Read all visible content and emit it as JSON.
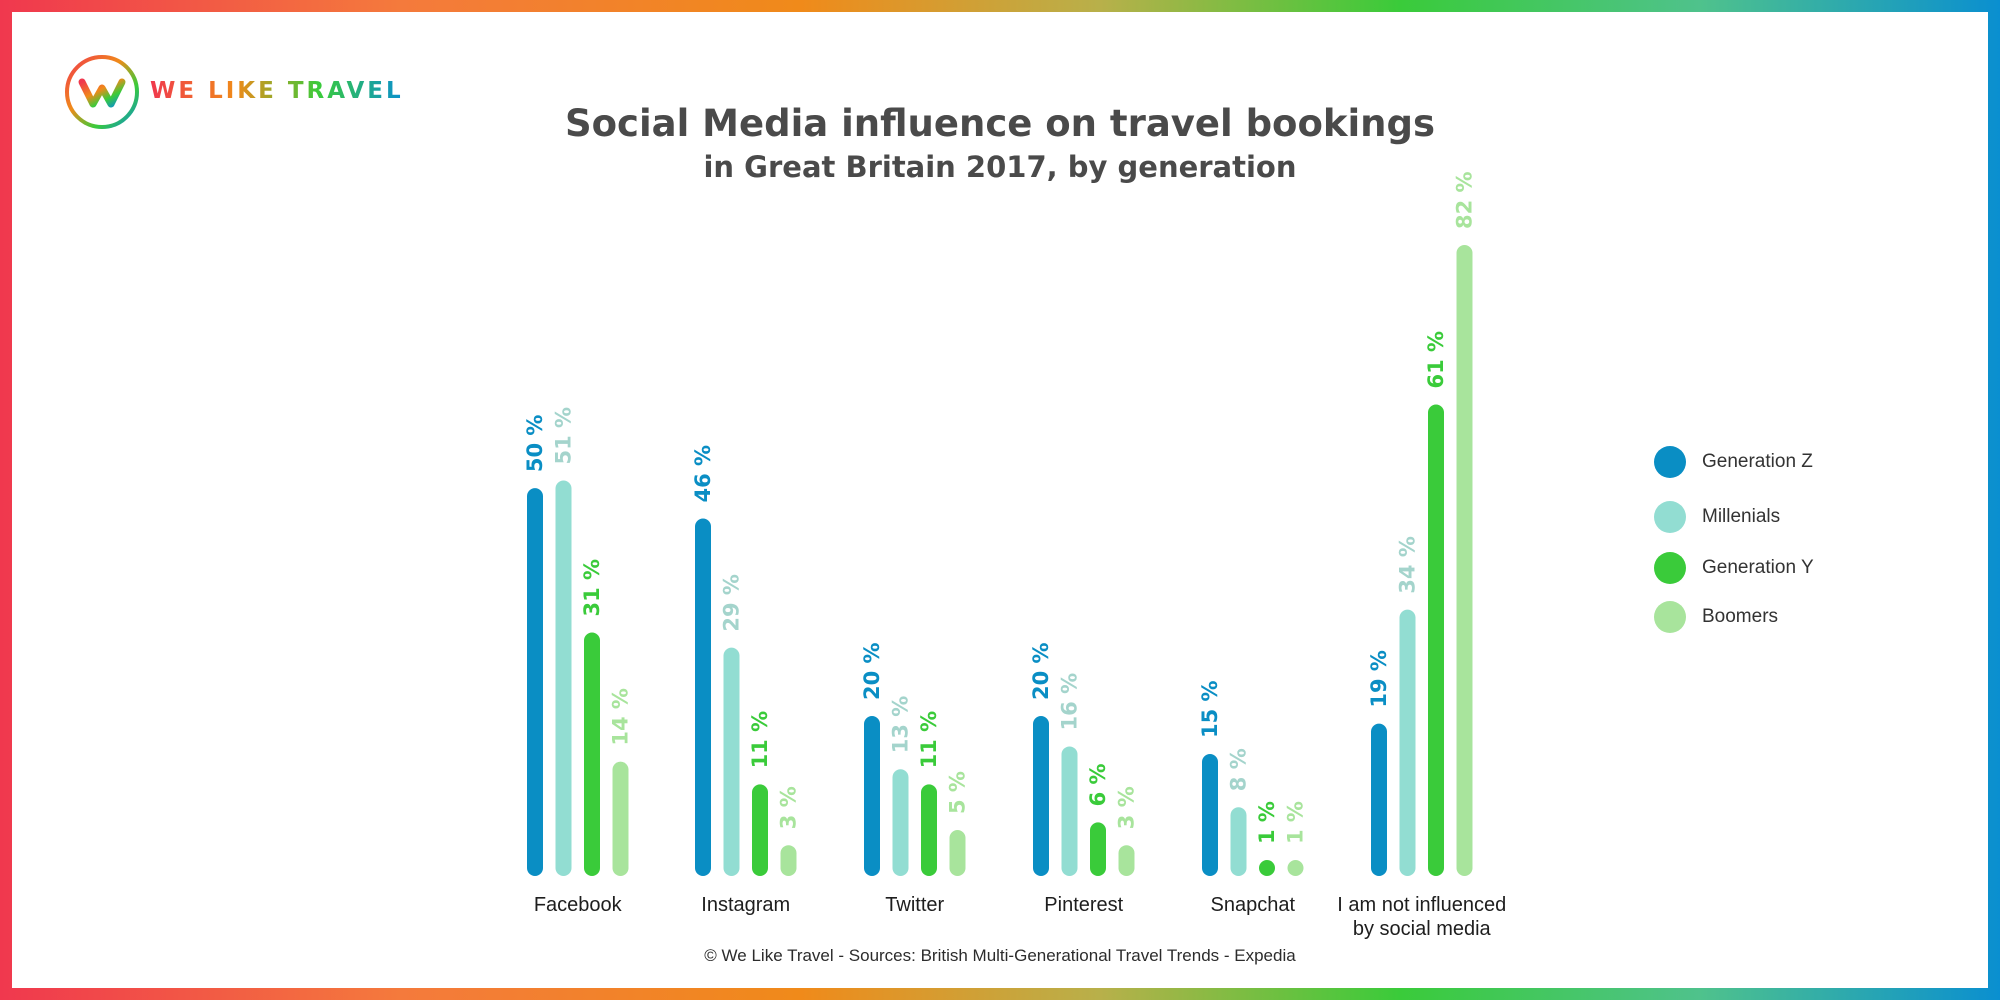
{
  "brand": {
    "name": "WE LIKE TRAVEL"
  },
  "chart_data": {
    "type": "bar",
    "title": "Social Media influence on travel bookings",
    "subtitle": "in Great Britain 2017, by generation",
    "categories": [
      "Facebook",
      "Instagram",
      "Twitter",
      "Pinterest",
      "Snapchat",
      "I am not influenced\nby social media"
    ],
    "series": [
      {
        "name": "Generation Z",
        "color": "#0a8ec4",
        "values": [
          50,
          46,
          20,
          20,
          15,
          19
        ]
      },
      {
        "name": "Millenials",
        "color": "#92ddd2",
        "values": [
          51,
          29,
          13,
          16,
          8,
          34
        ]
      },
      {
        "name": "Generation Y",
        "color": "#3acb3a",
        "values": [
          31,
          11,
          11,
          6,
          1,
          61
        ]
      },
      {
        "name": "Boomers",
        "color": "#a8e49c",
        "values": [
          14,
          3,
          5,
          3,
          1,
          82
        ]
      }
    ],
    "value_suffix": " %",
    "ylim": [
      0,
      82
    ],
    "legend_position": "right",
    "grid": false,
    "source": "© We Like Travel - Sources: British Multi-Generational Travel Trends - Expedia"
  }
}
